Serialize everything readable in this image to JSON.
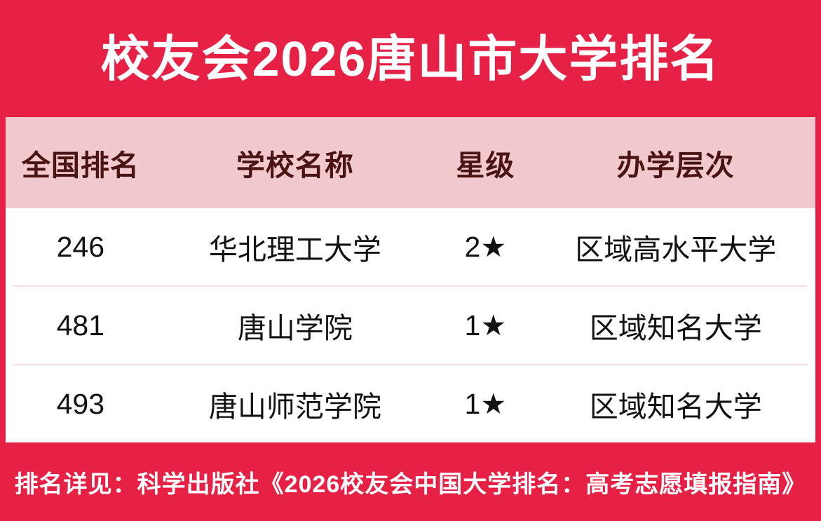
{
  "banner": {
    "title": "校友会2026唐山市大学排名"
  },
  "table": {
    "headers": [
      "全国排名",
      "学校名称",
      "星级",
      "办学层次"
    ],
    "rows": [
      [
        "246",
        "华北理工大学",
        "2★",
        "区域高水平大学"
      ],
      [
        "481",
        "唐山学院",
        "1★",
        "区域知名大学"
      ],
      [
        "493",
        "唐山师范学院",
        "1★",
        "区域知名大学"
      ]
    ]
  },
  "footer": {
    "note": "排名详见：科学出版社《2026校友会中国大学排名：高考志愿填报指南》"
  },
  "colors": {
    "banner_red": "#E72146",
    "header_pink": "#F2C9CC",
    "header_text_maroon": "#4A1414",
    "row_separator_pink": "#F9DCDF",
    "body_text": "#121212",
    "banner_text": "#FFFFFF"
  },
  "chart_data": {
    "type": "table",
    "title": "校友会2026唐山市大学排名",
    "columns": [
      "全国排名",
      "学校名称",
      "星级",
      "办学层次"
    ],
    "rows": [
      {
        "national_rank": 246,
        "school": "华北理工大学",
        "stars": "2★",
        "level": "区域高水平大学"
      },
      {
        "national_rank": 481,
        "school": "唐山学院",
        "stars": "1★",
        "level": "区域知名大学"
      },
      {
        "national_rank": 493,
        "school": "唐山师范学院",
        "stars": "1★",
        "level": "区域知名大学"
      }
    ],
    "footnote": "排名详见：科学出版社《2026校友会中国大学排名：高考志愿填报指南》"
  }
}
